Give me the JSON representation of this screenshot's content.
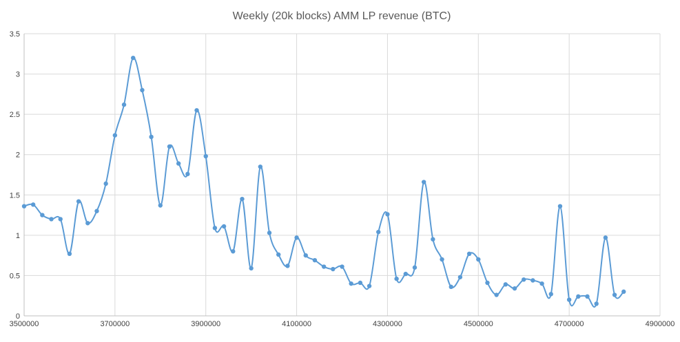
{
  "chart_data": {
    "type": "line",
    "title": "Weekly (20k blocks) AMM LP revenue (BTC)",
    "xlabel": "",
    "ylabel": "",
    "xlim": [
      3500000,
      4900000
    ],
    "ylim": [
      0,
      3.5
    ],
    "x_ticks": [
      "3500000",
      "3700000",
      "3900000",
      "4100000",
      "4300000",
      "4500000",
      "4700000",
      "4900000"
    ],
    "y_ticks": [
      "0",
      "0.5",
      "1",
      "1.5",
      "2",
      "2.5",
      "3",
      "3.5"
    ],
    "grid": true,
    "smoothed": true,
    "legend": "none",
    "series": [
      {
        "color": "#5b9bd5",
        "points": [
          [
            3500000,
            1.36
          ],
          [
            3520000,
            1.38
          ],
          [
            3540000,
            1.25
          ],
          [
            3560000,
            1.2
          ],
          [
            3580000,
            1.2
          ],
          [
            3600000,
            0.77
          ],
          [
            3620000,
            1.42
          ],
          [
            3640000,
            1.15
          ],
          [
            3660000,
            1.3
          ],
          [
            3680000,
            1.64
          ],
          [
            3700000,
            2.24
          ],
          [
            3720000,
            2.62
          ],
          [
            3740000,
            3.2
          ],
          [
            3760000,
            2.8
          ],
          [
            3780000,
            2.22
          ],
          [
            3800000,
            1.37
          ],
          [
            3820000,
            2.1
          ],
          [
            3840000,
            1.89
          ],
          [
            3860000,
            1.76
          ],
          [
            3880000,
            2.55
          ],
          [
            3900000,
            1.98
          ],
          [
            3920000,
            1.09
          ],
          [
            3940000,
            1.11
          ],
          [
            3960000,
            0.8
          ],
          [
            3980000,
            1.45
          ],
          [
            4000000,
            0.59
          ],
          [
            4020000,
            1.85
          ],
          [
            4040000,
            1.03
          ],
          [
            4060000,
            0.76
          ],
          [
            4080000,
            0.62
          ],
          [
            4100000,
            0.97
          ],
          [
            4120000,
            0.75
          ],
          [
            4140000,
            0.69
          ],
          [
            4160000,
            0.61
          ],
          [
            4180000,
            0.58
          ],
          [
            4200000,
            0.61
          ],
          [
            4220000,
            0.4
          ],
          [
            4240000,
            0.41
          ],
          [
            4260000,
            0.37
          ],
          [
            4280000,
            1.04
          ],
          [
            4300000,
            1.26
          ],
          [
            4320000,
            0.46
          ],
          [
            4340000,
            0.52
          ],
          [
            4360000,
            0.6
          ],
          [
            4380000,
            1.66
          ],
          [
            4400000,
            0.95
          ],
          [
            4420000,
            0.7
          ],
          [
            4440000,
            0.36
          ],
          [
            4460000,
            0.48
          ],
          [
            4480000,
            0.77
          ],
          [
            4500000,
            0.7
          ],
          [
            4520000,
            0.41
          ],
          [
            4540000,
            0.26
          ],
          [
            4560000,
            0.39
          ],
          [
            4580000,
            0.34
          ],
          [
            4600000,
            0.45
          ],
          [
            4620000,
            0.44
          ],
          [
            4640000,
            0.4
          ],
          [
            4660000,
            0.27
          ],
          [
            4680000,
            1.36
          ],
          [
            4700000,
            0.2
          ],
          [
            4720000,
            0.24
          ],
          [
            4740000,
            0.24
          ],
          [
            4760000,
            0.15
          ],
          [
            4780000,
            0.97
          ],
          [
            4800000,
            0.26
          ],
          [
            4820000,
            0.3
          ]
        ]
      }
    ]
  }
}
